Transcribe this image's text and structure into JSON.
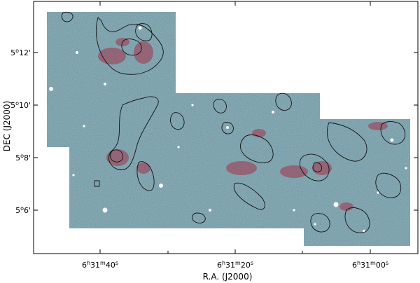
{
  "figure": {
    "x_axis": {
      "label": "R.A. (J2000)",
      "ticks": [
        {
          "h": "6",
          "m": "31",
          "s": "40"
        },
        {
          "h": "6",
          "m": "31",
          "s": "20"
        },
        {
          "h": "6",
          "m": "31",
          "s": "00"
        }
      ]
    },
    "y_axis": {
      "label": "DEC (J2000)",
      "ticks": [
        {
          "d": "5",
          "m": "12'"
        },
        {
          "d": "5",
          "m": "10'"
        },
        {
          "d": "5",
          "m": "8'"
        },
        {
          "d": "5",
          "m": "6'"
        }
      ]
    },
    "colors": {
      "sky_base": "#5f7f8a",
      "sky_cyan": "#7fb9c8",
      "nebula_red": "#a3324a",
      "contour": "#111111",
      "frame": "#000000",
      "background": "#ffffff"
    }
  }
}
